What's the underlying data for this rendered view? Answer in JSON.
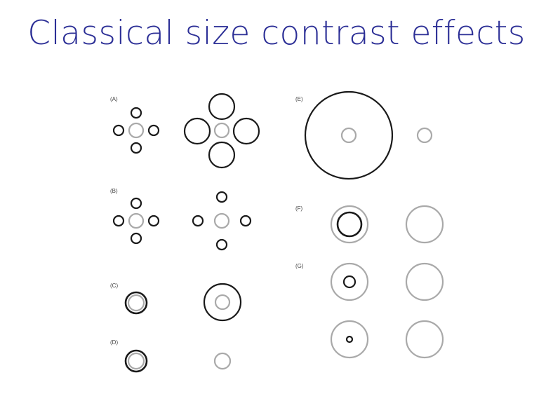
{
  "slide": {
    "title": "Classical size contrast effects"
  },
  "panels": {
    "a": "(A)",
    "b": "(B)",
    "c": "(C)",
    "d": "(D)",
    "e": "(E)",
    "f": "(F)",
    "g": "(G)"
  },
  "colors": {
    "title": "#2c2f96",
    "inducer": "#1a1a1a",
    "target": "#a9a9a9"
  }
}
